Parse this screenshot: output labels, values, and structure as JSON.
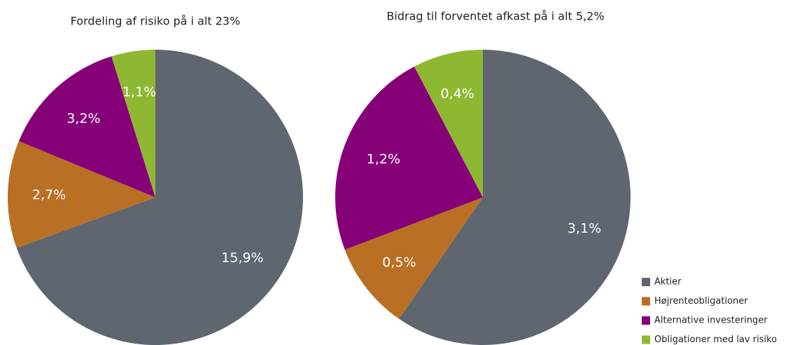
{
  "chart_data": [
    {
      "type": "pie",
      "title": "Fordeling af risiko på i alt 23%",
      "categories": [
        "Aktier",
        "Højrenteobligationer",
        "Alternative investeringer",
        "Obligationer med lav risiko"
      ],
      "values": [
        15.9,
        2.7,
        3.2,
        1.1
      ],
      "value_labels": [
        "15,9%",
        "2,7%",
        "3,2%",
        "1,1%"
      ],
      "colors": [
        "#5f6670",
        "#b96f24",
        "#860078",
        "#8fb832"
      ]
    },
    {
      "type": "pie",
      "title": "Bidrag til forventet afkast på i alt 5,2%",
      "categories": [
        "Aktier",
        "Højrenteobligationer",
        "Alternative investeringer",
        "Obligationer med lav risiko"
      ],
      "values": [
        3.1,
        0.5,
        1.2,
        0.4
      ],
      "value_labels": [
        "3,1%",
        "0,5%",
        "1,2%",
        "0,4%"
      ],
      "colors": [
        "#5f6670",
        "#b96f24",
        "#860078",
        "#8fb832"
      ]
    }
  ]
}
